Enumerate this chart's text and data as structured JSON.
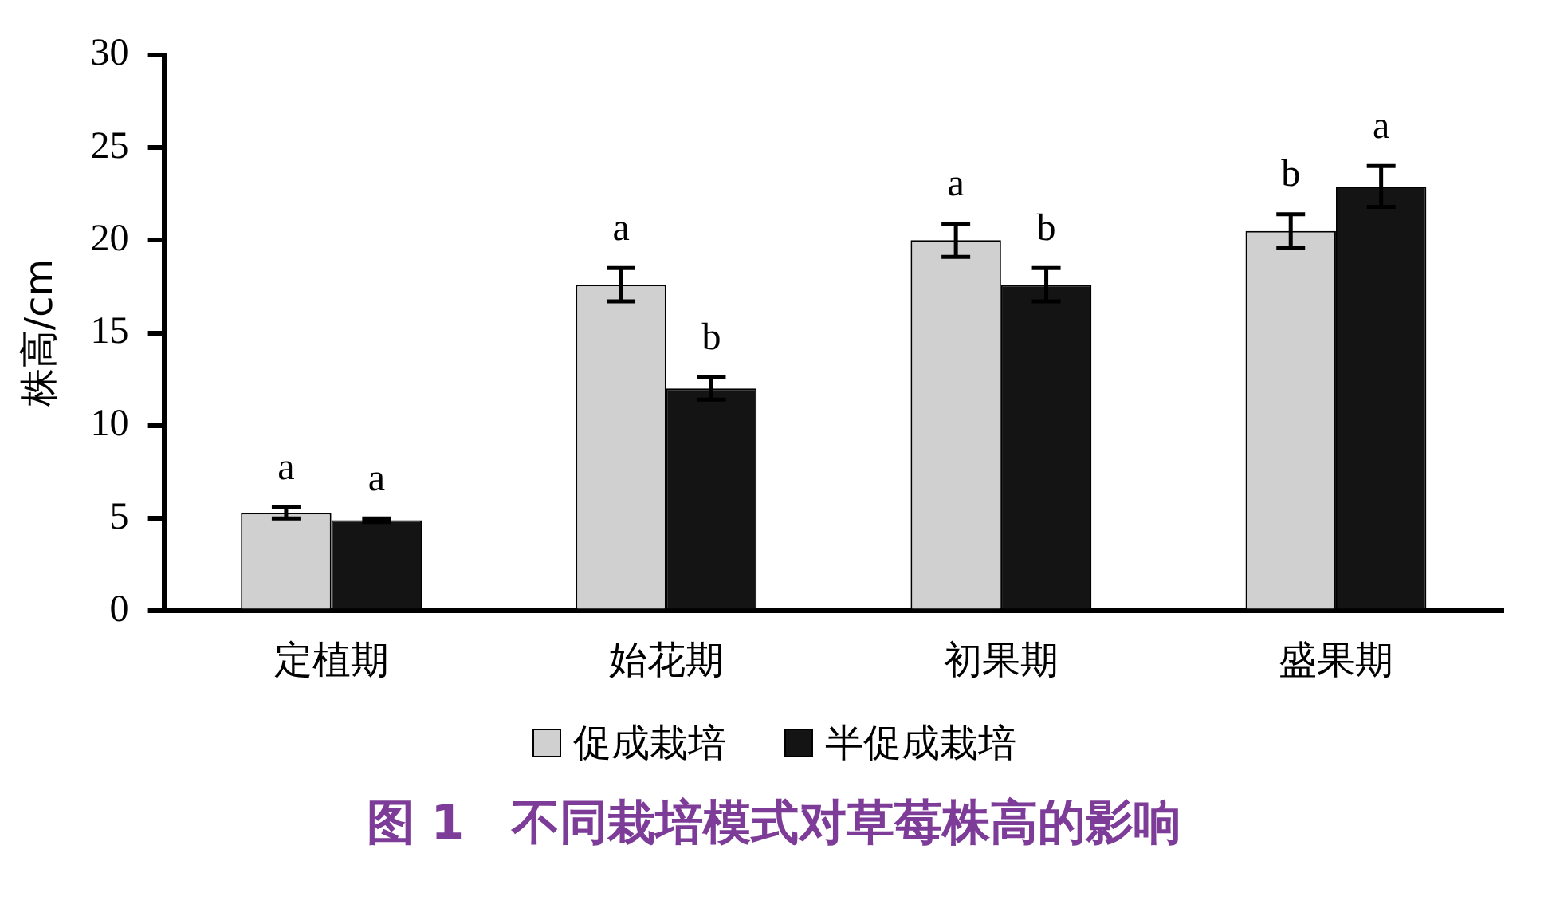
{
  "chart_data": {
    "type": "bar",
    "title": "图 1　不同栽培模式对草莓株高的影响",
    "ylabel": "株高/cm",
    "categories": [
      "定植期",
      "始花期",
      "初果期",
      "盛果期"
    ],
    "series": [
      {
        "name": "促成栽培",
        "color": "#d0d0d0",
        "values": [
          5.3,
          17.6,
          20.0,
          20.5
        ],
        "errors": [
          0.3,
          0.9,
          0.9,
          0.9
        ],
        "value_labels": [
          "a",
          "a",
          "a",
          "b"
        ]
      },
      {
        "name": "半促成栽培",
        "color": "#141414",
        "values": [
          4.9,
          12.0,
          17.6,
          22.9
        ],
        "errors": [
          0.1,
          0.6,
          0.9,
          1.1
        ],
        "value_labels": [
          "a",
          "b",
          "b",
          "a"
        ]
      }
    ],
    "ylim": [
      0,
      30
    ],
    "yticks": [
      0,
      5,
      10,
      15,
      20,
      25,
      30
    ],
    "grid": false,
    "legend": "bottom"
  }
}
